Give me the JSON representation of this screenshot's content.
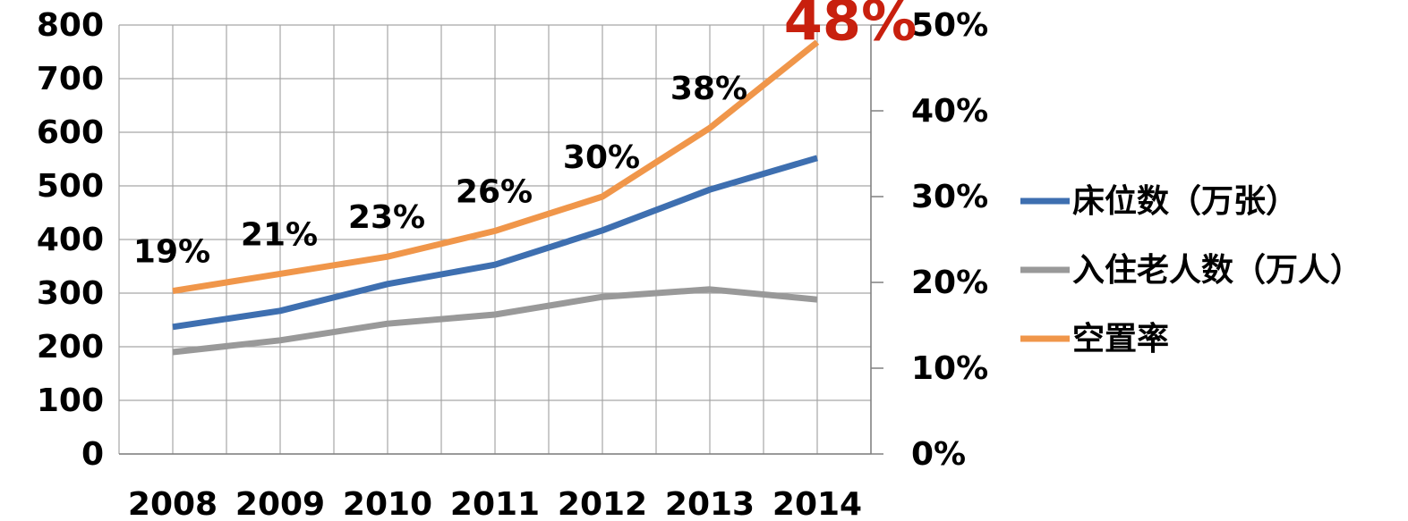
{
  "chart_data": {
    "type": "line",
    "categories": [
      "2008",
      "2009",
      "2010",
      "2011",
      "2012",
      "2013",
      "2014"
    ],
    "series": [
      {
        "name": "床位数（万张）",
        "color": "#3e6fb0",
        "values": [
          237,
          267,
          317,
          353,
          417,
          493,
          552
        ]
      },
      {
        "name": "入住老人数（万人）",
        "color": "#999999",
        "values": [
          190,
          212,
          243,
          260,
          293,
          307,
          288
        ]
      },
      {
        "name": "空置率",
        "color": "#f0964a",
        "axis": "y2",
        "values": [
          19,
          21,
          23,
          26,
          30,
          38,
          48
        ],
        "value_labels": [
          "19%",
          "21%",
          "23%",
          "26%",
          "30%",
          "38%",
          "48%"
        ],
        "highlight_label_color": "#c8200e"
      }
    ],
    "ylim": [
      0,
      800
    ],
    "yticks": [
      0,
      100,
      200,
      300,
      400,
      500,
      600,
      700,
      800
    ],
    "y2lim": [
      0,
      50
    ],
    "y2ticks": [
      {
        "value": 0,
        "label": "0%"
      },
      {
        "value": 10,
        "label": "10%"
      },
      {
        "value": 20,
        "label": "20%"
      },
      {
        "value": 30,
        "label": "30%"
      },
      {
        "value": 40,
        "label": "40%"
      },
      {
        "value": 50,
        "label": "50%"
      }
    ],
    "grid": true,
    "legend": "right"
  }
}
